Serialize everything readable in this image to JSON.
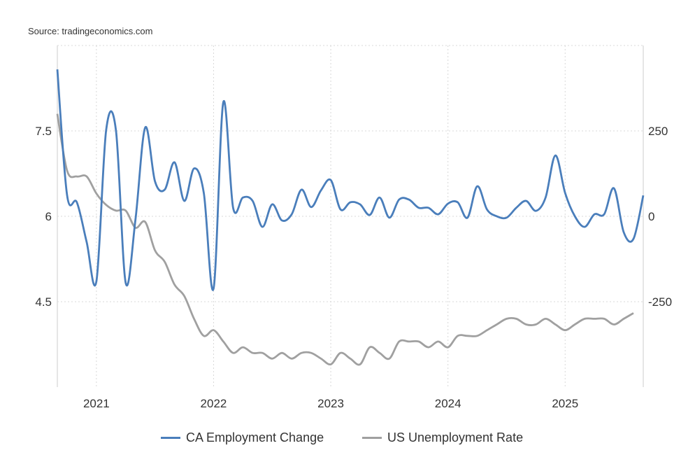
{
  "source": "Source: tradingeconomics.com",
  "chart_data": {
    "type": "line",
    "title": "",
    "x_start": "2020-09",
    "x_ticks": [
      "2021",
      "2022",
      "2023",
      "2024",
      "2025"
    ],
    "grid": true,
    "legend_position": "bottom-center",
    "series": [
      {
        "name": "CA Employment Change",
        "axis": "right",
        "color": "#4a7ebb",
        "start": "2020-09",
        "values": [
          430,
          61,
          41,
          -75,
          -190,
          252,
          252,
          -195,
          -10,
          260,
          102,
          78,
          158,
          45,
          140,
          68,
          -211,
          334,
          25,
          55,
          45,
          -31,
          35,
          -12,
          6,
          78,
          27,
          76,
          106,
          20,
          41,
          35,
          4,
          55,
          -4,
          49,
          49,
          25,
          25,
          6,
          37,
          41,
          -4,
          88,
          20,
          0,
          -4,
          25,
          45,
          16,
          55,
          178,
          68,
          0,
          -31,
          6,
          6,
          82,
          -47,
          -66,
          61
        ]
      },
      {
        "name": "US Unemployment Rate",
        "axis": "left",
        "color": "#a0a0a0",
        "start": "2020-09",
        "values": [
          7.8,
          6.8,
          6.7,
          6.7,
          6.4,
          6.2,
          6.1,
          6.1,
          5.8,
          5.9,
          5.4,
          5.2,
          4.8,
          4.6,
          4.2,
          3.9,
          4.0,
          3.8,
          3.6,
          3.7,
          3.6,
          3.6,
          3.5,
          3.6,
          3.5,
          3.6,
          3.6,
          3.5,
          3.4,
          3.6,
          3.5,
          3.4,
          3.7,
          3.6,
          3.5,
          3.8,
          3.8,
          3.8,
          3.7,
          3.8,
          3.7,
          3.9,
          3.9,
          3.9,
          4.0,
          4.1,
          4.2,
          4.2,
          4.1,
          4.1,
          4.2,
          4.1,
          4.0,
          4.1,
          4.2,
          4.2,
          4.2,
          4.1,
          4.2,
          4.3
        ]
      }
    ],
    "left_axis": {
      "ticks": [
        "4.5",
        "6",
        "7.5"
      ],
      "tick_values": [
        4.5,
        6,
        7.5
      ],
      "ylim": [
        3,
        9
      ]
    },
    "right_axis": {
      "ticks": [
        "-250",
        "0",
        "250"
      ],
      "tick_values": [
        -250,
        0,
        250
      ],
      "ylim": [
        -500,
        500
      ]
    }
  }
}
